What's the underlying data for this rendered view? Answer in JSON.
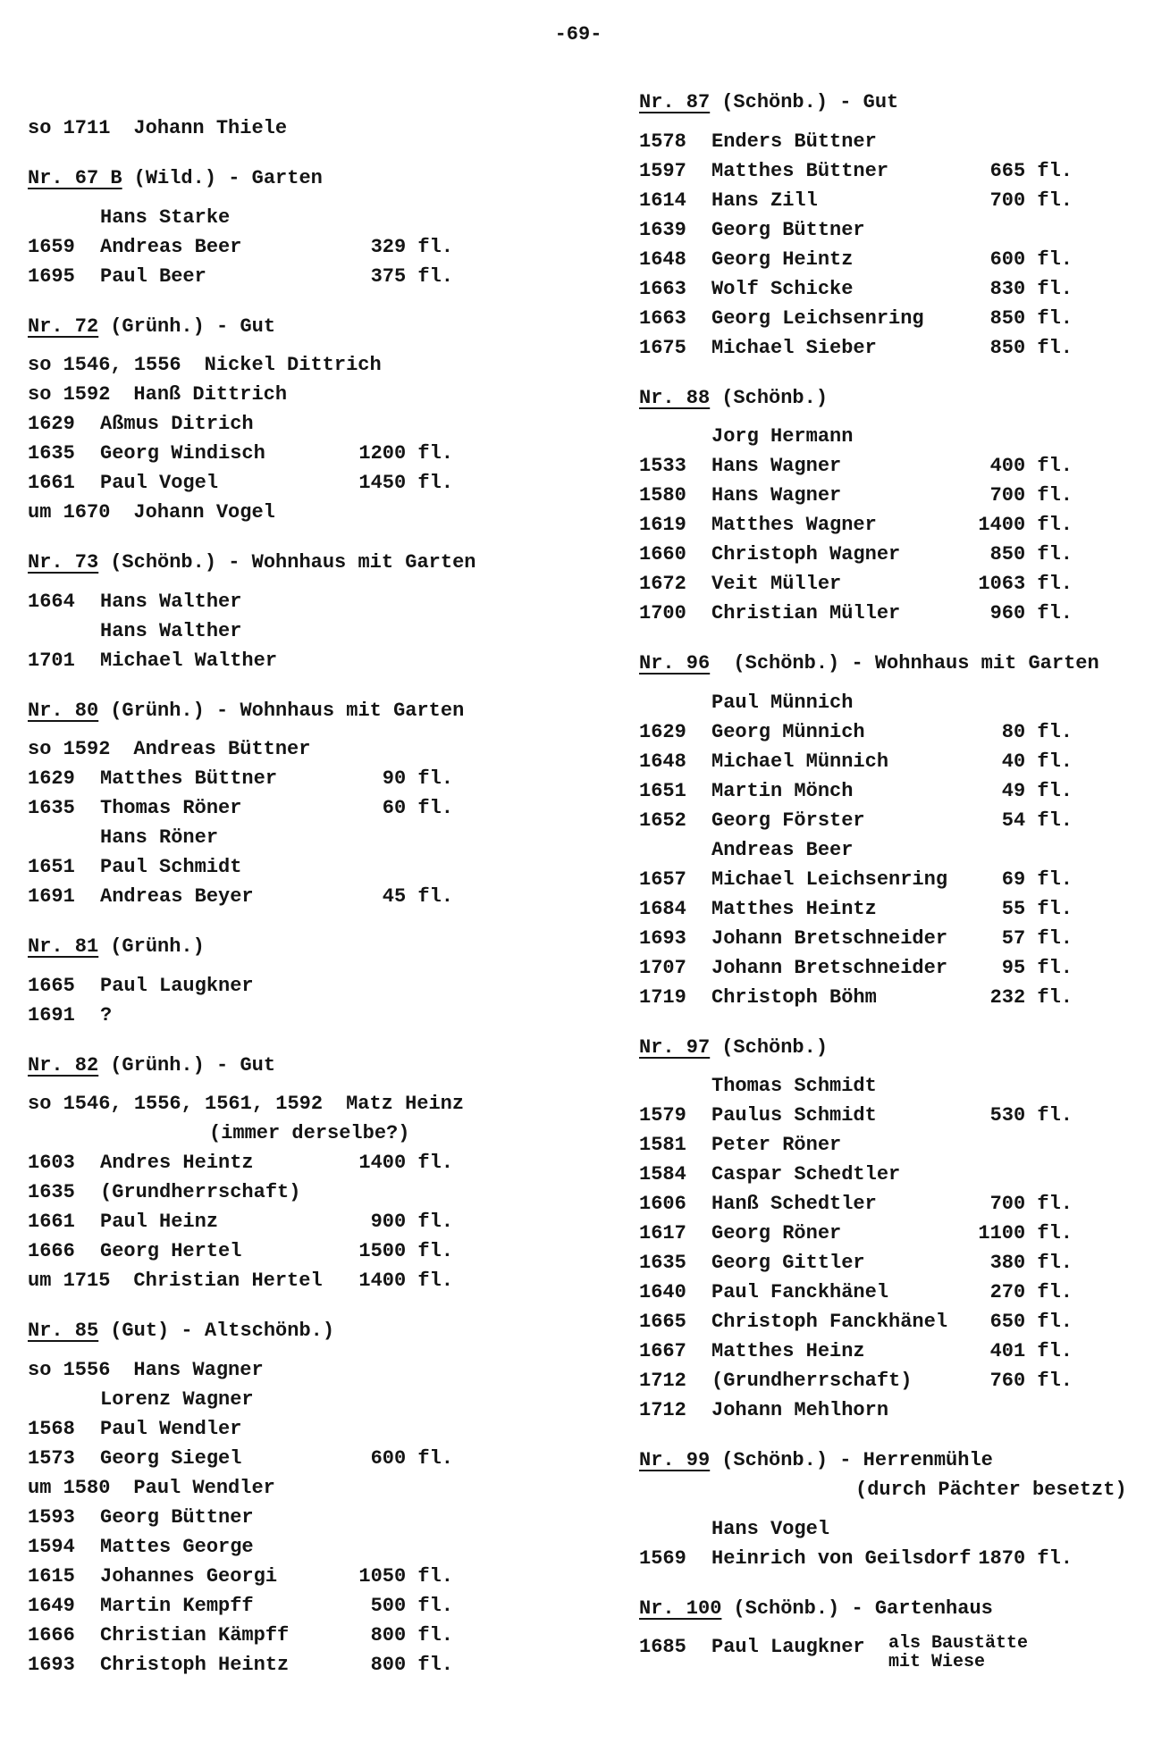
{
  "page_number": "-69-",
  "columns": [
    {
      "sections": [
        {
          "rows": [
            {
              "date": "so 1711",
              "name": "Johann Thiele"
            }
          ]
        },
        {
          "heading": {
            "nr": "Nr. 67 B",
            "rest": "(Wild.) - Garten"
          },
          "rows": [
            {
              "date": "",
              "name": "Hans Starke"
            },
            {
              "date": "1659",
              "name": "Andreas Beer",
              "value": "329 fl."
            },
            {
              "date": "1695",
              "name": "Paul Beer",
              "value": "375 fl."
            }
          ]
        },
        {
          "heading": {
            "nr": "Nr. 72",
            "rest": "(Grünh.) - Gut"
          },
          "rows": [
            {
              "date": "so 1546, 1556",
              "name": "Nickel Dittrich"
            },
            {
              "date": "so 1592",
              "name": "Hanß Dittrich"
            },
            {
              "date": "1629",
              "name": "Aßmus Ditrich"
            },
            {
              "date": "1635",
              "name": "Georg Windisch",
              "value": "1200 fl."
            },
            {
              "date": "1661",
              "name": "Paul Vogel",
              "value": "1450 fl."
            },
            {
              "date": "um 1670",
              "name": "Johann Vogel"
            }
          ]
        },
        {
          "heading": {
            "nr": "Nr. 73",
            "rest": "(Schönb.) - Wohnhaus mit Garten"
          },
          "rows": [
            {
              "date": "1664",
              "name": "Hans Walther"
            },
            {
              "date": "",
              "name": "Hans Walther"
            },
            {
              "date": "1701",
              "name": "Michael Walther"
            }
          ]
        },
        {
          "heading": {
            "nr": "Nr. 80",
            "rest": "(Grünh.) - Wohnhaus mit Garten"
          },
          "rows": [
            {
              "date": "so 1592",
              "name": "Andreas Büttner"
            },
            {
              "date": "1629",
              "name": "Matthes Büttner",
              "value": "90 fl."
            },
            {
              "date": "1635",
              "name": "Thomas Röner",
              "value": "60 fl."
            },
            {
              "date": "",
              "name": "Hans Röner"
            },
            {
              "date": "1651",
              "name": "Paul Schmidt"
            },
            {
              "date": "1691",
              "name": "Andreas Beyer",
              "value": "45 fl."
            }
          ]
        },
        {
          "heading": {
            "nr": "Nr. 81",
            "rest": "(Grünh.)"
          },
          "rows": [
            {
              "date": "1665",
              "name": "Paul Laugkner"
            },
            {
              "date": "1691",
              "name": "?"
            }
          ]
        },
        {
          "heading": {
            "nr": "Nr. 82",
            "rest": "(Grünh.) - Gut"
          },
          "rows": [
            {
              "date": "so 1546, 1556, 1561, 1592",
              "name": "Matz Heinz"
            },
            {
              "note": "(immer derselbe?)"
            },
            {
              "date": "1603",
              "name": "Andres Heintz",
              "value": "1400 fl."
            },
            {
              "date": "1635",
              "name": "(Grundherrschaft)"
            },
            {
              "date": "1661",
              "name": "Paul Heinz",
              "value": "900 fl."
            },
            {
              "date": "1666",
              "name": "Georg Hertel",
              "value": "1500 fl."
            },
            {
              "date": "um 1715",
              "name": "Christian Hertel",
              "value": "1400 fl."
            }
          ]
        },
        {
          "heading": {
            "nr": "Nr. 85",
            "rest": "(Gut) - Altschönb.)"
          },
          "rows": [
            {
              "date": "so 1556",
              "name": "Hans Wagner"
            },
            {
              "date": "",
              "name": "Lorenz Wagner"
            },
            {
              "date": "1568",
              "name": "Paul Wendler"
            },
            {
              "date": "1573",
              "name": "Georg Siegel",
              "value": "600 fl."
            },
            {
              "date": "um 1580",
              "name": "Paul Wendler"
            },
            {
              "date": "1593",
              "name": "Georg Büttner"
            },
            {
              "date": "1594",
              "name": "Mattes George"
            },
            {
              "date": "1615",
              "name": "Johannes Georgi",
              "value": "1050 fl."
            },
            {
              "date": "1649",
              "name": "Martin Kempff",
              "value": "500 fl."
            },
            {
              "date": "1666",
              "name": "Christian Kämpff",
              "value": "800 fl."
            },
            {
              "date": "1693",
              "name": "Christoph Heintz",
              "value": "800 fl."
            }
          ]
        }
      ]
    },
    {
      "sections": [
        {
          "heading": {
            "nr": "Nr. 87",
            "rest": "(Schönb.) - Gut"
          },
          "rows": [
            {
              "date": "1578",
              "name": "Enders Büttner"
            },
            {
              "date": "1597",
              "name": "Matthes Büttner",
              "value": "665 fl."
            },
            {
              "date": "1614",
              "name": "Hans Zill",
              "value": "700 fl."
            },
            {
              "date": "1639",
              "name": "Georg Büttner"
            },
            {
              "date": "1648",
              "name": "Georg Heintz",
              "value": "600 fl."
            },
            {
              "date": "1663",
              "name": "Wolf Schicke",
              "value": "830 fl."
            },
            {
              "date": "1663",
              "name": "Georg Leichsenring",
              "value": "850 fl."
            },
            {
              "date": "1675",
              "name": "Michael Sieber",
              "value": "850 fl."
            }
          ]
        },
        {
          "heading": {
            "nr": "Nr. 88",
            "rest": "(Schönb.)"
          },
          "rows": [
            {
              "date": "",
              "name": "Jorg Hermann"
            },
            {
              "date": "1533",
              "name": "Hans Wagner",
              "value": "400 fl."
            },
            {
              "date": "1580",
              "name": "Hans Wagner",
              "value": "700 fl."
            },
            {
              "date": "1619",
              "name": "Matthes Wagner",
              "value": "1400 fl."
            },
            {
              "date": "1660",
              "name": "Christoph Wagner",
              "value": "850 fl."
            },
            {
              "date": "1672",
              "name": "Veit Müller",
              "value": "1063 fl."
            },
            {
              "date": "1700",
              "name": "Christian Müller",
              "value": "960 fl."
            }
          ]
        },
        {
          "heading": {
            "nr": "Nr. 96",
            "rest": " (Schönb.) - Wohnhaus mit Garten"
          },
          "rows": [
            {
              "date": "",
              "name": "Paul Münnich"
            },
            {
              "date": "1629",
              "name": "Georg Münnich",
              "value": "80 fl."
            },
            {
              "date": "1648",
              "name": "Michael Münnich",
              "value": "40 fl."
            },
            {
              "date": "1651",
              "name": "Martin Mönch",
              "value": "49 fl."
            },
            {
              "date": "1652",
              "name": "Georg Förster",
              "value": "54 fl."
            },
            {
              "date": "",
              "name": "Andreas Beer"
            },
            {
              "date": "1657",
              "name": "Michael Leichsenring",
              "value": "69 fl."
            },
            {
              "date": "1684",
              "name": "Matthes Heintz",
              "value": "55 fl."
            },
            {
              "date": "1693",
              "name": "Johann Bretschneider",
              "value": "57 fl."
            },
            {
              "date": "1707",
              "name": "Johann Bretschneider",
              "value": "95 fl."
            },
            {
              "date": "1719",
              "name": "Christoph Böhm",
              "value": "232 fl."
            }
          ]
        },
        {
          "heading": {
            "nr": "Nr. 97",
            "rest": "(Schönb.)"
          },
          "rows": [
            {
              "date": "",
              "name": "Thomas Schmidt"
            },
            {
              "date": "1579",
              "name": "Paulus Schmidt",
              "value": "530 fl."
            },
            {
              "date": "1581",
              "name": "Peter Röner"
            },
            {
              "date": "1584",
              "name": "Caspar Schedtler"
            },
            {
              "date": "1606",
              "name": "Hanß Schedtler",
              "value": "700 fl."
            },
            {
              "date": "1617",
              "name": "Georg Röner",
              "value": "1100 fl."
            },
            {
              "date": "1635",
              "name": "Georg Gittler",
              "value": "380 fl."
            },
            {
              "date": "1640",
              "name": "Paul Fanckhänel",
              "value": "270 fl."
            },
            {
              "date": "1665",
              "name": "Christoph Fanckhänel",
              "value": "650 fl."
            },
            {
              "date": "1667",
              "name": "Matthes Heinz",
              "value": "401 fl."
            },
            {
              "date": "1712",
              "name": "(Grundherrschaft)",
              "value": "760 fl."
            },
            {
              "date": "1712",
              "name": "Johann Mehlhorn"
            }
          ]
        },
        {
          "heading": {
            "nr": "Nr. 99",
            "rest": "(Schönb.) - Herrenmühle",
            "rest2": "(durch Pächter besetzt)"
          },
          "rows": [
            {
              "date": "",
              "name": "Hans Vogel"
            },
            {
              "date": "1569",
              "name": "Heinrich von Geilsdorf",
              "value": "1870 fl."
            }
          ]
        },
        {
          "heading": {
            "nr": "Nr. 100",
            "rest": "(Schönb.) - Gartenhaus"
          },
          "rows": [
            {
              "date": "1685",
              "name": "Paul Laugkner",
              "remark": [
                "als Baustätte",
                "mit Wiese"
              ]
            }
          ]
        }
      ]
    }
  ]
}
